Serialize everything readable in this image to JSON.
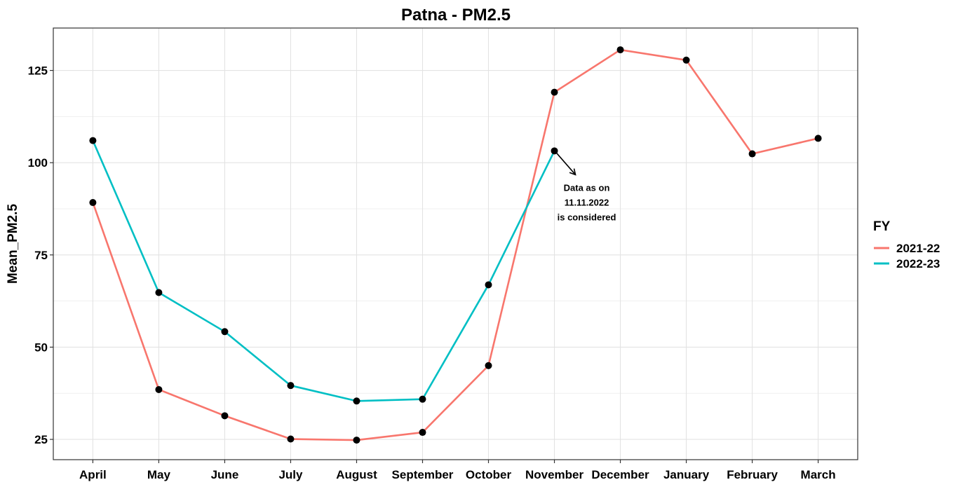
{
  "chart_data": {
    "type": "line",
    "title": "Patna - PM2.5",
    "xlabel": "",
    "ylabel": "Mean_PM2.5",
    "categories": [
      "April",
      "May",
      "June",
      "July",
      "August",
      "September",
      "October",
      "November",
      "December",
      "January",
      "February",
      "March"
    ],
    "ylim": [
      19.5,
      136.5
    ],
    "yticks": [
      25,
      50,
      75,
      100,
      125
    ],
    "grid": true,
    "legend": {
      "title": "FY",
      "position": "right"
    },
    "series": [
      {
        "name": "2021-22",
        "color": "#F8766D",
        "values": [
          89.2,
          38.5,
          31.4,
          25.1,
          24.8,
          26.9,
          45.0,
          119.1,
          130.6,
          127.8,
          102.4,
          106.6
        ]
      },
      {
        "name": "2022-23",
        "color": "#00BFC4",
        "values": [
          106.0,
          64.8,
          54.2,
          39.6,
          35.4,
          35.9,
          66.9,
          103.2,
          null,
          null,
          null,
          null
        ]
      }
    ],
    "point_color": "#000000",
    "annotation": {
      "lines": [
        "Data as on",
        "11.11.2022",
        "is considered"
      ],
      "category": "November",
      "value": 103.2
    }
  }
}
